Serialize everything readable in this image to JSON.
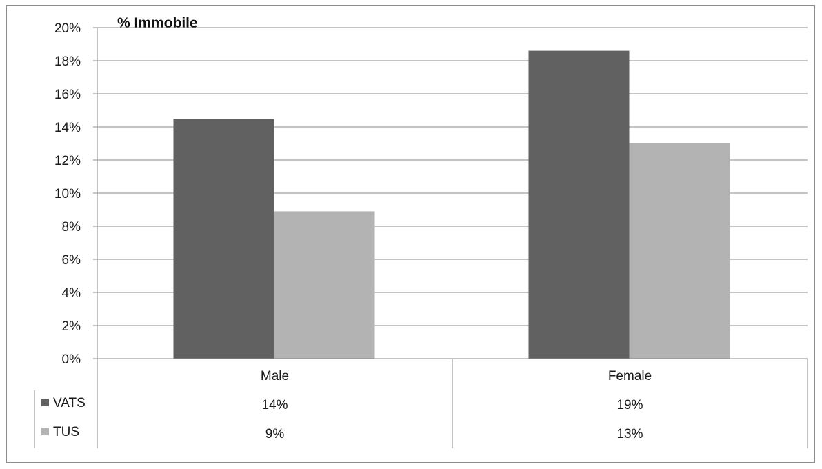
{
  "chart_data": {
    "type": "bar",
    "title": "% Immobile",
    "categories": [
      "Male",
      "Female"
    ],
    "series": [
      {
        "name": "VATS",
        "values": [
          0.145,
          0.186
        ],
        "labels": [
          "14%",
          "19%"
        ],
        "color": "#616161"
      },
      {
        "name": "TUS",
        "values": [
          0.089,
          0.13
        ],
        "labels": [
          "9%",
          "13%"
        ],
        "color": "#b3b3b3"
      }
    ],
    "ylim": [
      0,
      0.2
    ],
    "yticks": [
      "0%",
      "2%",
      "4%",
      "6%",
      "8%",
      "10%",
      "12%",
      "14%",
      "16%",
      "18%",
      "20%"
    ],
    "grid": true,
    "legend": "data-table-below"
  }
}
